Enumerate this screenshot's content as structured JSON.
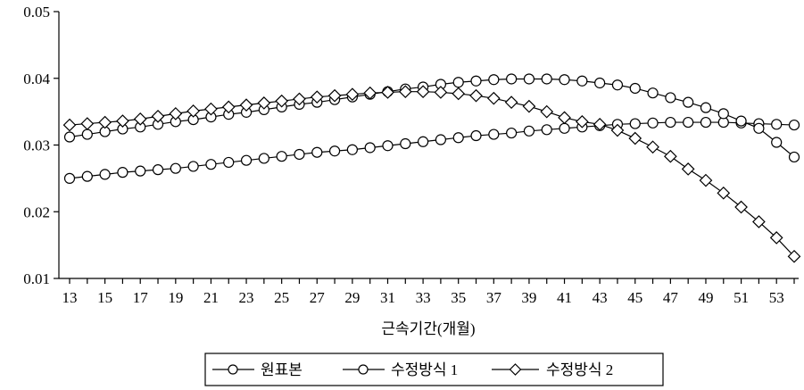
{
  "chart_data": {
    "type": "line",
    "title": "",
    "xlabel": "근속기간(개월)",
    "ylabel": "",
    "ylim": [
      0.01,
      0.05
    ],
    "yticks": [
      "0.01",
      "0.02",
      "0.03",
      "0.04",
      "0.05"
    ],
    "xlim": [
      13,
      54
    ],
    "xticks": [
      "13",
      "15",
      "17",
      "19",
      "21",
      "23",
      "25",
      "27",
      "29",
      "31",
      "33",
      "35",
      "37",
      "39",
      "41",
      "43",
      "45",
      "47",
      "49",
      "51",
      "53"
    ],
    "grid": false,
    "legend_position": "bottom",
    "x": [
      13,
      14,
      15,
      16,
      17,
      18,
      19,
      20,
      21,
      22,
      23,
      24,
      25,
      26,
      27,
      28,
      29,
      30,
      31,
      32,
      33,
      34,
      35,
      36,
      37,
      38,
      39,
      40,
      41,
      42,
      43,
      44,
      45,
      46,
      47,
      48,
      49,
      50,
      51,
      52,
      53,
      54
    ],
    "series": [
      {
        "name": "원표본",
        "marker": "circle",
        "values": [
          0.025,
          0.0253,
          0.0256,
          0.0259,
          0.0261,
          0.0263,
          0.0265,
          0.0268,
          0.0271,
          0.0274,
          0.0277,
          0.028,
          0.0283,
          0.0286,
          0.0289,
          0.0291,
          0.0293,
          0.0296,
          0.0299,
          0.0302,
          0.0305,
          0.0308,
          0.0311,
          0.0314,
          0.0316,
          0.0318,
          0.0321,
          0.0323,
          0.0325,
          0.0327,
          0.0329,
          0.0331,
          0.0332,
          0.0333,
          0.0334,
          0.0334,
          0.0334,
          0.0334,
          0.0333,
          0.0332,
          0.0331,
          0.033
        ]
      },
      {
        "name": "수정방식 1",
        "marker": "circle",
        "values": [
          0.0312,
          0.0316,
          0.032,
          0.0324,
          0.0327,
          0.0331,
          0.0335,
          0.0338,
          0.0342,
          0.0346,
          0.0349,
          0.0353,
          0.0357,
          0.0361,
          0.0364,
          0.0368,
          0.0372,
          0.0376,
          0.038,
          0.0384,
          0.0387,
          0.0391,
          0.0394,
          0.0396,
          0.0398,
          0.0399,
          0.0399,
          0.0399,
          0.0398,
          0.0396,
          0.0393,
          0.039,
          0.0385,
          0.0378,
          0.0371,
          0.0364,
          0.0356,
          0.0347,
          0.0336,
          0.0325,
          0.0304,
          0.0282
        ]
      },
      {
        "name": "수정방식 2",
        "marker": "diamond",
        "values": [
          0.033,
          0.0332,
          0.0334,
          0.0336,
          0.0339,
          0.0343,
          0.0347,
          0.0351,
          0.0354,
          0.0357,
          0.036,
          0.0363,
          0.0366,
          0.0369,
          0.0372,
          0.0374,
          0.0376,
          0.0378,
          0.0379,
          0.038,
          0.038,
          0.0379,
          0.0377,
          0.0374,
          0.037,
          0.0364,
          0.0358,
          0.035,
          0.0341,
          0.0335,
          0.0331,
          0.0322,
          0.031,
          0.0297,
          0.0283,
          0.0264,
          0.0247,
          0.0228,
          0.0207,
          0.0185,
          0.0161,
          0.0133
        ]
      }
    ]
  }
}
